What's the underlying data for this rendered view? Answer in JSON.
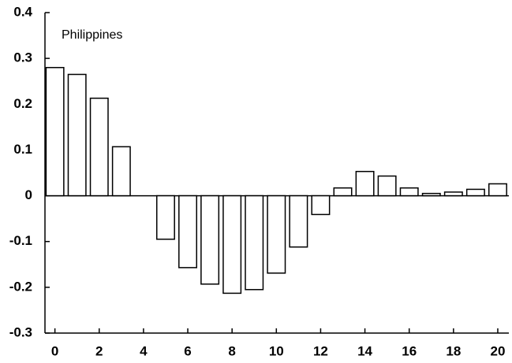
{
  "chart_data": {
    "type": "bar",
    "annotation": "Philippines",
    "x": [
      0,
      1,
      2,
      3,
      4,
      5,
      6,
      7,
      8,
      9,
      10,
      11,
      12,
      13,
      14,
      15,
      16,
      17,
      18,
      19,
      20
    ],
    "values": [
      0.28,
      0.265,
      0.213,
      0.107,
      0,
      -0.095,
      -0.157,
      -0.193,
      -0.213,
      -0.205,
      -0.169,
      -0.112,
      -0.041,
      0.017,
      0.053,
      0.043,
      0.017,
      0.005,
      0.008,
      0.014,
      0.026
    ],
    "color": "#ffffff",
    "xlim": [
      -0.45,
      20.5
    ],
    "xticks": [
      0,
      2,
      4,
      6,
      8,
      10,
      12,
      14,
      16,
      18,
      20
    ],
    "ylim": [
      -0.3,
      0.4
    ],
    "yticks": [
      -0.3,
      -0.2,
      -0.1,
      0,
      0.1,
      0.2,
      0.3,
      0.4
    ]
  }
}
